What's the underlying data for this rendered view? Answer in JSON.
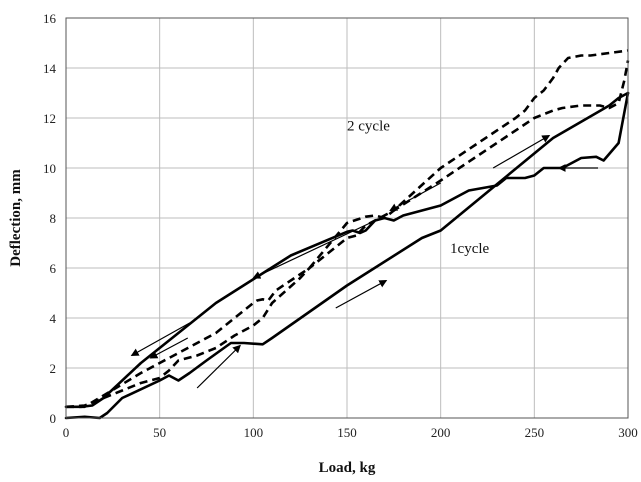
{
  "chart_data": {
    "type": "line",
    "title": "",
    "xlabel": "Load, kg",
    "ylabel": "Deflection, mm",
    "xlim": [
      0,
      300
    ],
    "ylim": [
      0,
      16
    ],
    "xticks": [
      0,
      50,
      100,
      150,
      200,
      250,
      300
    ],
    "yticks": [
      0,
      2,
      4,
      6,
      8,
      10,
      12,
      14,
      16
    ],
    "grid": true,
    "legend": "none",
    "annotations": [
      "2 cycle",
      "1cycle"
    ],
    "colors": {
      "axis": "#555555",
      "grid": "#bdbdbd",
      "series": "#000000"
    },
    "series": [
      {
        "style": "solid",
        "x": [
          0,
          10,
          18,
          22,
          30,
          50,
          55,
          60,
          66,
          75,
          88,
          95,
          105,
          110,
          150,
          190,
          200,
          260,
          290,
          295,
          300
        ],
        "y": [
          0,
          0.05,
          0,
          0.2,
          0.8,
          1.5,
          1.7,
          1.5,
          1.8,
          2.3,
          3.0,
          3.0,
          2.95,
          3.2,
          5.3,
          7.2,
          7.5,
          11.2,
          12.5,
          12.8,
          13.0
        ]
      },
      {
        "style": "solid",
        "x": [
          0,
          8,
          14,
          20,
          40,
          80,
          120,
          150,
          153,
          157,
          160,
          165,
          170,
          175,
          180,
          185,
          195,
          200,
          210,
          215,
          230,
          235,
          245,
          250,
          255,
          265,
          275,
          283,
          287,
          295,
          300
        ],
        "y": [
          0.45,
          0.45,
          0.5,
          0.8,
          2.2,
          4.6,
          6.5,
          7.45,
          7.5,
          7.4,
          7.5,
          7.9,
          8.0,
          7.9,
          8.1,
          8.2,
          8.4,
          8.5,
          8.9,
          9.1,
          9.3,
          9.6,
          9.6,
          9.7,
          10.0,
          10.0,
          10.4,
          10.45,
          10.3,
          11.0,
          13.0
        ]
      },
      {
        "style": "dashed",
        "x": [
          0,
          10,
          20,
          30,
          40,
          50,
          55,
          60,
          70,
          80,
          90,
          100,
          105,
          110,
          125,
          130,
          140,
          150,
          155,
          160,
          175,
          200,
          220,
          250,
          260,
          265,
          275,
          280,
          285,
          290,
          295,
          298,
          300
        ],
        "y": [
          0.45,
          0.5,
          0.8,
          1.1,
          1.4,
          1.6,
          1.9,
          2.3,
          2.5,
          2.8,
          3.3,
          3.7,
          4.0,
          4.6,
          5.6,
          6.0,
          6.6,
          7.2,
          7.3,
          7.7,
          8.3,
          9.5,
          10.5,
          12.0,
          12.3,
          12.4,
          12.5,
          12.5,
          12.5,
          12.4,
          12.6,
          13.5,
          14.3
        ]
      },
      {
        "style": "dashed",
        "x": [
          0,
          10,
          20,
          40,
          60,
          80,
          100,
          102,
          105,
          108,
          112,
          130,
          150,
          160,
          165,
          170,
          175,
          200,
          240,
          245,
          250,
          255,
          260,
          263,
          268,
          275,
          280,
          290,
          300
        ],
        "y": [
          0.45,
          0.45,
          0.9,
          1.8,
          2.6,
          3.4,
          4.6,
          4.7,
          4.75,
          4.7,
          5.1,
          6.0,
          7.8,
          8.05,
          8.1,
          8.0,
          8.3,
          10.0,
          12.0,
          12.3,
          12.8,
          13.1,
          13.6,
          14.0,
          14.4,
          14.5,
          14.5,
          14.6,
          14.7
        ]
      }
    ],
    "arrows": [
      {
        "from": [
          70,
          1.2
        ],
        "to": [
          93,
          2.9
        ]
      },
      {
        "from": [
          144,
          4.4
        ],
        "to": [
          171,
          5.5
        ]
      },
      {
        "from": [
          284,
          10.0
        ],
        "to": [
          263,
          10.0
        ]
      },
      {
        "from": [
          228,
          10.0
        ],
        "to": [
          258,
          11.3
        ]
      },
      {
        "from": [
          200,
          9.4
        ],
        "to": [
          173,
          8.3
        ]
      },
      {
        "from": [
          168,
          8.0
        ],
        "to": [
          100,
          5.6
        ]
      },
      {
        "from": [
          65,
          3.2
        ],
        "to": [
          45,
          2.4
        ]
      },
      {
        "from": [
          66,
          3.8
        ],
        "to": [
          35,
          2.5
        ]
      }
    ],
    "labels": [
      {
        "text": "2 cycle",
        "x": 150,
        "y": 11.5
      },
      {
        "text": "1cycle",
        "x": 205,
        "y": 6.6
      }
    ]
  }
}
